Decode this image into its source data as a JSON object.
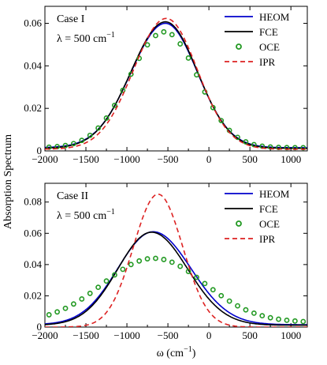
{
  "ylabel_shared": "Absorption Spectrum",
  "chart_data": [
    {
      "type": "line",
      "panel": "top",
      "annotation": [
        "Case I",
        "λ = 500 cm",
        "−1"
      ],
      "xlabel": "",
      "xlim": [
        -2000,
        1200
      ],
      "ylim": [
        0,
        0.068
      ],
      "xticks": [
        -2000,
        -1500,
        -1000,
        -500,
        0,
        500,
        1000
      ],
      "xtick_labels": [
        "−2000",
        "−1500",
        "−1000",
        "−500",
        "0",
        "500",
        "1000"
      ],
      "yticks": [
        0,
        0.02,
        0.04,
        0.06
      ],
      "ytick_labels": [
        "0",
        "0.02",
        "0.04",
        "0.06"
      ],
      "legend": "top-right",
      "series": [
        {
          "name": "HEOM",
          "style": "line",
          "color": "#0000cc",
          "model": {
            "a": 0.0585,
            "c": -530,
            "sl": 420,
            "sr": 390,
            "b": 0.0015
          }
        },
        {
          "name": "FCE",
          "style": "line",
          "color": "#000000",
          "model": {
            "a": 0.0595,
            "c": -530,
            "sl": 420,
            "sr": 390,
            "b": 0.0012
          }
        },
        {
          "name": "OCE",
          "style": "markers",
          "color": "#229922",
          "model": {
            "a": 0.0545,
            "c": -540,
            "sl": 430,
            "sr": 405,
            "b": 0.0015
          }
        },
        {
          "name": "IPR",
          "style": "dashed",
          "color": "#dd2222",
          "model": {
            "a": 0.0615,
            "c": -520,
            "sl": 400,
            "sr": 380,
            "b": 0.0008
          }
        }
      ]
    },
    {
      "type": "line",
      "panel": "bottom",
      "annotation": [
        "Case II",
        "λ = 500 cm",
        "−1"
      ],
      "xlabel": "ω (cm",
      "xlabel_sup": "−1",
      "xlabel_end": ")",
      "xlim": [
        -2000,
        1200
      ],
      "ylim": [
        0,
        0.092
      ],
      "xticks": [
        -2000,
        -1500,
        -1000,
        -500,
        0,
        500,
        1000
      ],
      "xtick_labels": [
        "−2000",
        "−1500",
        "−1000",
        "−500",
        "0",
        "500",
        "1000"
      ],
      "yticks": [
        0,
        0.02,
        0.04,
        0.06,
        0.08
      ],
      "ytick_labels": [
        "0",
        "0.02",
        "0.04",
        "0.06",
        "0.08"
      ],
      "legend": "top-right",
      "series": [
        {
          "name": "HEOM",
          "style": "line",
          "color": "#0000cc",
          "model": {
            "a": 0.0595,
            "c": -680,
            "sl": 430,
            "sr": 460,
            "b": 0.0015
          }
        },
        {
          "name": "FCE",
          "style": "line",
          "color": "#000000",
          "model": {
            "a": 0.0595,
            "c": -700,
            "sl": 410,
            "sr": 440,
            "b": 0.0012
          }
        },
        {
          "name": "OCE",
          "style": "markers",
          "color": "#229922",
          "model": {
            "a": 0.041,
            "c": -670,
            "sl": 620,
            "sr": 620,
            "b": 0.003
          }
        },
        {
          "name": "IPR",
          "style": "dashed",
          "color": "#dd2222",
          "model": {
            "a": 0.085,
            "c": -620,
            "sl": 300,
            "sr": 300,
            "b": 0.0
          }
        }
      ]
    }
  ]
}
